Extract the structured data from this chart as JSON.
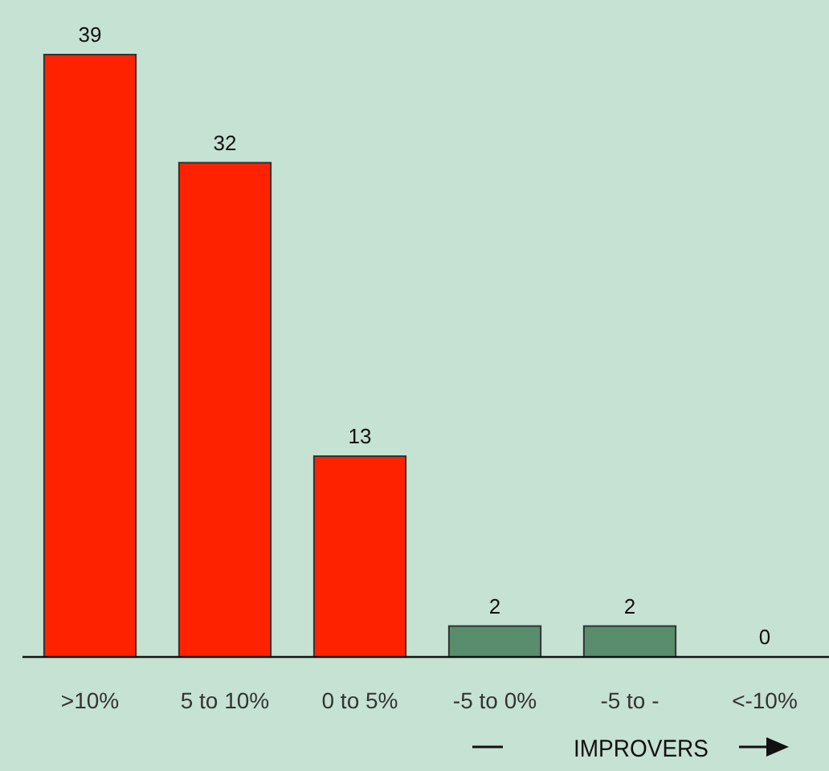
{
  "chart_data": {
    "type": "bar",
    "categories": [
      ">10%",
      "5 to 10%",
      "0 to 5%",
      "-5 to 0%",
      "-5 to -",
      "<-10%"
    ],
    "values": [
      39,
      32,
      13,
      2,
      2,
      0
    ],
    "colors": [
      "#ff2200",
      "#ff2200",
      "#ff2200",
      "#5a8c6e",
      "#5a8c6e",
      "#5a8c6e"
    ],
    "data_labels": true,
    "annotations": [
      "IMPROVERS"
    ]
  }
}
